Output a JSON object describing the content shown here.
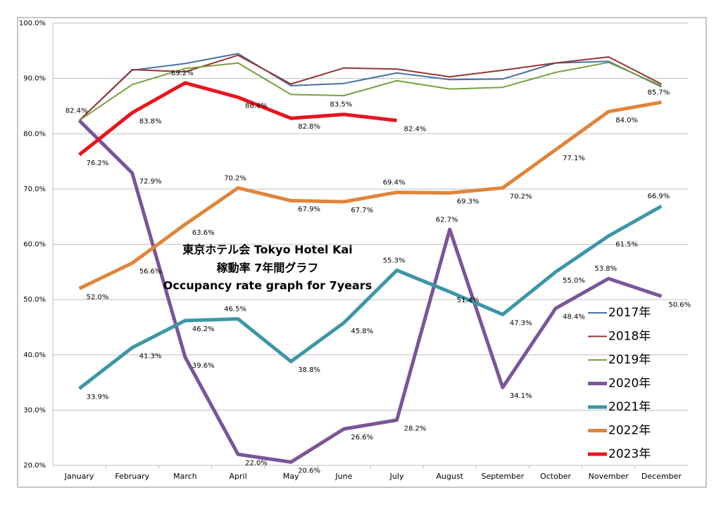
{
  "chart_data": {
    "type": "line",
    "title": [
      "東京ホテル会  Tokyo Hotel Kai",
      "稼動率 7年間グラフ",
      "Occupancy rate graph for 7years"
    ],
    "categories": [
      "January",
      "February",
      "March",
      "April",
      "May",
      "June",
      "July",
      "August",
      "September",
      "October",
      "November",
      "December"
    ],
    "ylim": [
      20,
      100
    ],
    "yticks": [
      {
        "value": 20,
        "label": "20.0%"
      },
      {
        "value": 30,
        "label": "30.0%"
      },
      {
        "value": 40,
        "label": "40.0%"
      },
      {
        "value": 50,
        "label": "50.0%"
      },
      {
        "value": 60,
        "label": "60.0%"
      },
      {
        "value": 70,
        "label": "70.0%"
      },
      {
        "value": 80,
        "label": "80.0%"
      },
      {
        "value": 90,
        "label": "90.0%"
      },
      {
        "value": 100,
        "label": "100.0%"
      }
    ],
    "grid": true,
    "legend": "right",
    "series": [
      {
        "name": "2017年",
        "color": "#4a6fa5",
        "values": [
          82.4,
          91.5,
          92.7,
          94.5,
          88.7,
          89.1,
          91.0,
          89.8,
          89.9,
          92.8,
          93.1,
          88.5
        ]
      },
      {
        "name": "2018年",
        "color": "#943634",
        "values": [
          82.4,
          91.6,
          91.2,
          94.2,
          89.0,
          91.9,
          91.7,
          90.3,
          91.5,
          92.8,
          93.9,
          89.0
        ]
      },
      {
        "name": "2019年",
        "color": "#77a040",
        "values": [
          82.4,
          88.9,
          91.8,
          92.8,
          87.1,
          86.9,
          89.6,
          88.1,
          88.4,
          91.1,
          92.9,
          88.7
        ]
      },
      {
        "name": "2020年",
        "color": "#7a559a",
        "values": [
          82.4,
          72.9,
          39.6,
          22.0,
          20.6,
          26.6,
          28.2,
          62.7,
          34.1,
          48.4,
          53.8,
          50.6
        ],
        "value_labels": [
          "82.4%",
          "72.9%",
          "39.6%",
          "22.0%",
          "20.6%",
          "26.6%",
          "28.2%",
          "62.7%",
          "34.1%",
          "48.4%",
          "53.8%",
          "50.6%"
        ]
      },
      {
        "name": "2021年",
        "color": "#3d96a8",
        "values": [
          33.9,
          41.3,
          46.2,
          46.5,
          38.8,
          45.8,
          55.3,
          51.4,
          47.3,
          55.0,
          61.5,
          66.9
        ],
        "value_labels": [
          "33.9%",
          "41.3%",
          "46.2%",
          "46.5%",
          "38.8%",
          "45.8%",
          "55.3%",
          "51.4%",
          "47.3%",
          "55.0%",
          "61.5%",
          "66.9%"
        ]
      },
      {
        "name": "2022年",
        "color": "#e0853b",
        "values": [
          52.0,
          56.6,
          63.6,
          70.2,
          67.9,
          67.7,
          69.4,
          69.3,
          70.2,
          77.1,
          84.0,
          85.7
        ],
        "value_labels": [
          "52.0%",
          "56.6%",
          "63.6%",
          "70.2%",
          "67.9%",
          "67.7%",
          "69.4%",
          "69.3%",
          "70.2%",
          "77.1%",
          "84.0%",
          "85.7%"
        ]
      },
      {
        "name": "2023年",
        "color": "#e8141c",
        "values": [
          76.2,
          83.8,
          89.2,
          86.6,
          82.8,
          83.5,
          82.4,
          null,
          null,
          null,
          null,
          null
        ],
        "value_labels": [
          "76.2%",
          "83.8%",
          "89.2%",
          "86.6%",
          "82.8%",
          "83.5%",
          "82.4%",
          null,
          null,
          null,
          null,
          null
        ]
      }
    ]
  }
}
